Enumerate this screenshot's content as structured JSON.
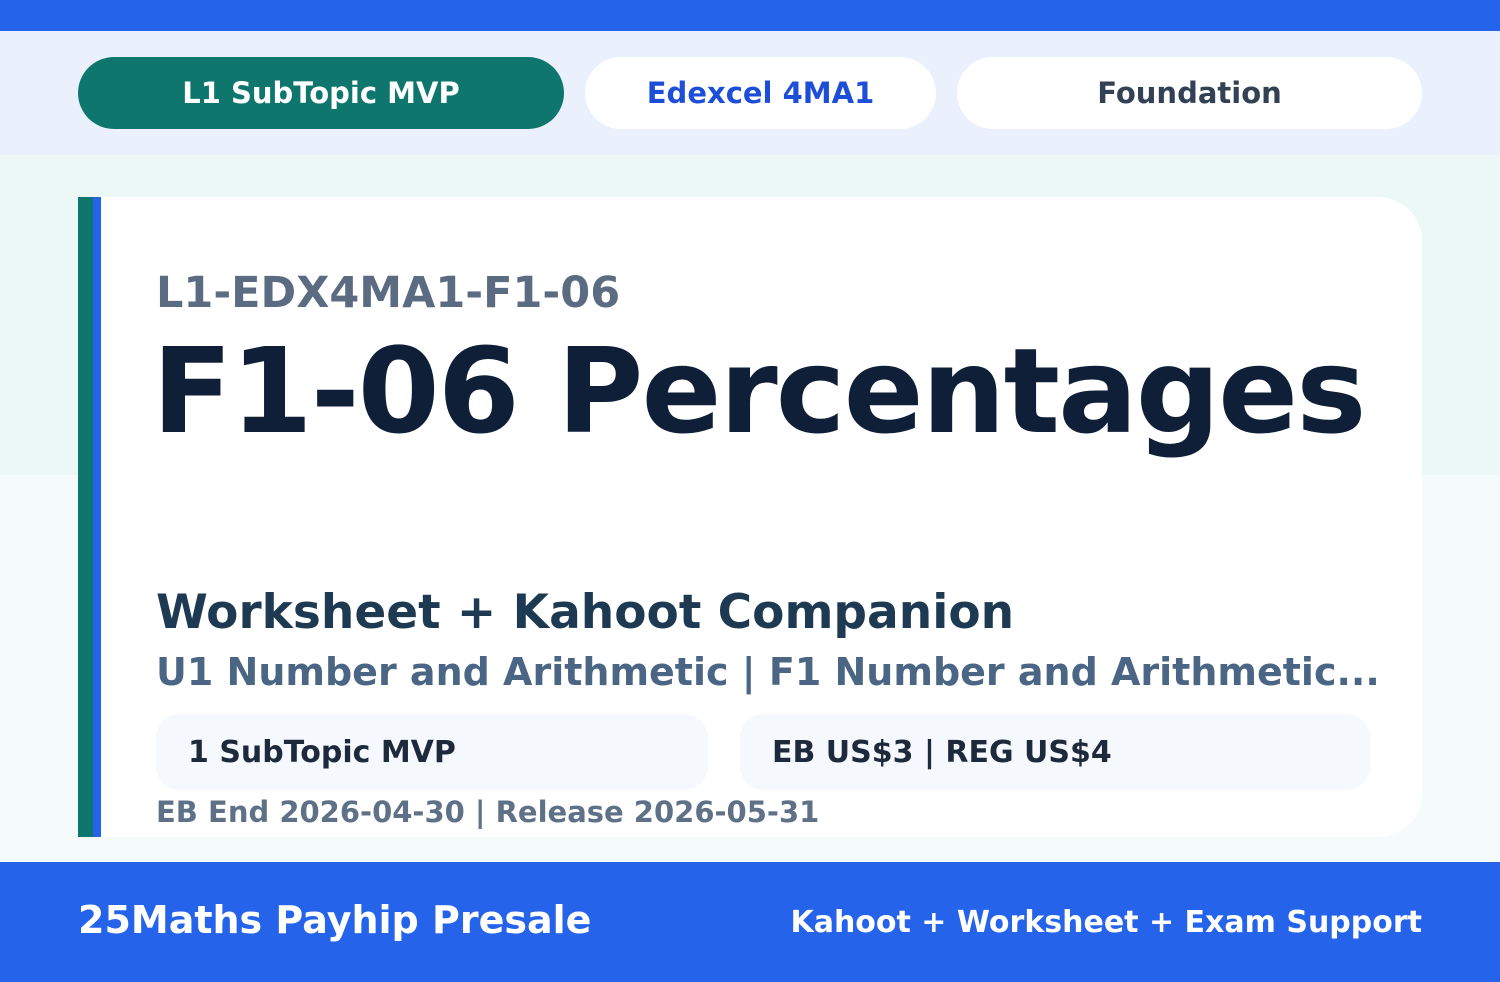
{
  "colors": {
    "primary_blue": "#2563eb",
    "teal": "#0f766e",
    "title": "#0f1f38"
  },
  "pills": [
    "L1 SubTopic MVP",
    "Edexcel 4MA1",
    "Foundation"
  ],
  "card": {
    "code": "L1-EDX4MA1-F1-06",
    "title": "F1-06 Percentages",
    "subtitle": "Worksheet + Kahoot Companion",
    "unit": "U1 Number and Arithmetic | F1 Number and Arithmetic...",
    "box_left": "1 SubTopic MVP",
    "box_right": "EB US$3 | REG US$4",
    "dates": "EB End 2026-04-30 | Release 2026-05-31"
  },
  "footer": {
    "brand": "25Maths Payhip Presale",
    "tagline": "Kahoot + Worksheet + Exam Support"
  }
}
